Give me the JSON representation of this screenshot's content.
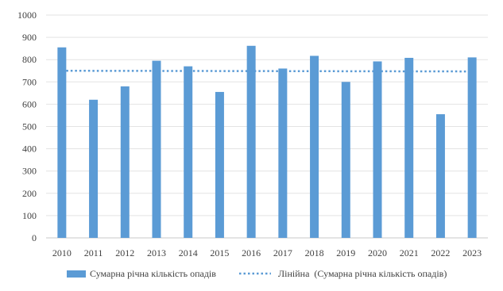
{
  "chart_data": {
    "type": "bar",
    "title": "",
    "xlabel": "",
    "ylabel": "",
    "categories": [
      "2010",
      "2011",
      "2012",
      "2013",
      "2014",
      "2015",
      "2016",
      "2017",
      "2018",
      "2019",
      "2020",
      "2021",
      "2022",
      "2023"
    ],
    "series": [
      {
        "name": "Сумарна річна кількість опадів",
        "type": "bar",
        "color": "#5b9bd5",
        "values": [
          855,
          620,
          680,
          795,
          770,
          655,
          862,
          760,
          817,
          700,
          792,
          808,
          555,
          810
        ]
      }
    ],
    "trendline": {
      "name": "Лінійна  (Сумарна річна кількість опадів)",
      "type": "linear",
      "style": "dotted",
      "color": "#5b9bd5",
      "start": 750,
      "end": 747
    },
    "ylim": [
      0,
      1000
    ],
    "yticks": [
      0,
      100,
      200,
      300,
      400,
      500,
      600,
      700,
      800,
      900,
      1000
    ],
    "grid": true,
    "legend_position": "bottom"
  }
}
